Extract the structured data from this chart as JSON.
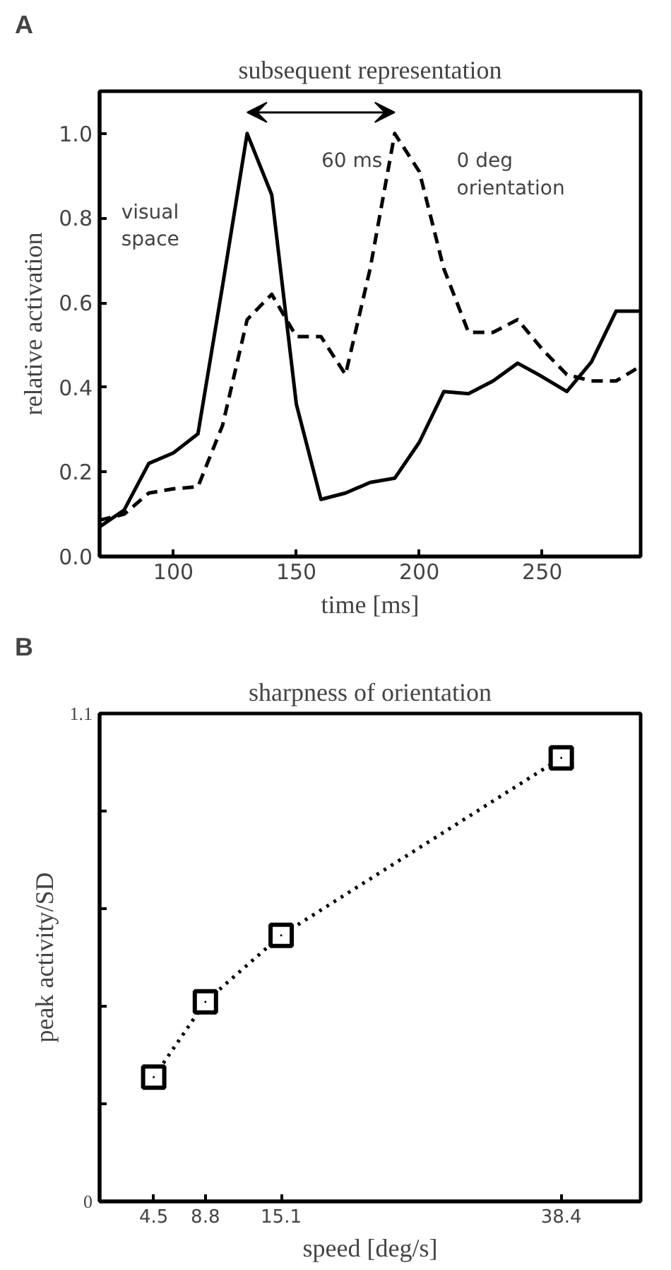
{
  "chart_data": [
    {
      "type": "line",
      "title": "subsequent representation",
      "xlabel": "time [ms]",
      "ylabel": "relative activation",
      "x": [
        70,
        80,
        90,
        100,
        110,
        120,
        130,
        140,
        150,
        160,
        170,
        180,
        190,
        200,
        210,
        220,
        230,
        240,
        250,
        260,
        270,
        280,
        290
      ],
      "series": [
        {
          "color": "#000000",
          "line_style": "solid",
          "values": [
            0.07,
            0.11,
            0.22,
            0.245,
            0.29,
            0.64,
            1.0,
            0.855,
            0.36,
            0.135,
            0.15,
            0.175,
            0.185,
            0.27,
            0.39,
            0.385,
            0.415,
            0.457,
            0.425,
            0.39,
            0.46,
            0.58,
            0.58
          ]
        },
        {
          "color": "#000000",
          "line_style": "dashed",
          "values": [
            0.086,
            0.1,
            0.15,
            0.16,
            0.165,
            0.31,
            0.56,
            0.62,
            0.52,
            0.52,
            0.43,
            0.68,
            1.0,
            0.91,
            0.68,
            0.53,
            0.53,
            0.56,
            0.49,
            0.43,
            0.415,
            0.415,
            0.45
          ]
        }
      ],
      "xlim": [
        70,
        290
      ],
      "ylim": [
        0,
        1.1
      ],
      "xticks": [
        100,
        150,
        200,
        250
      ],
      "yticks": [
        {
          "value": 0,
          "label": "0.0"
        },
        {
          "value": 0.2,
          "label": "0.2"
        },
        {
          "value": 0.4,
          "label": "0.4"
        },
        {
          "value": 0.6,
          "label": "0.6"
        },
        {
          "value": 0.8,
          "label": "0.8"
        },
        {
          "value": 1.0,
          "label": "1.0"
        }
      ],
      "grid": false,
      "marker": "none",
      "annotations": [
        "A",
        "visual\nspace",
        "0 deg\norientation",
        "60 ms"
      ]
    },
    {
      "type": "line",
      "title": "sharpness of orientation",
      "xlabel": "speed [deg/s]",
      "ylabel": "peak activity/SD",
      "x": [
        4.5,
        8.8,
        15.1,
        38.4
      ],
      "series": [
        {
          "color": "#000000",
          "values": [
            0.28,
            0.45,
            0.6,
            1.0
          ]
        }
      ],
      "xlim": [
        0,
        45
      ],
      "ylim": [
        0,
        1.1
      ],
      "xticks": [
        4.5,
        8.8,
        15.1,
        38.4
      ],
      "yticks": [
        0,
        {
          "value": 0.22,
          "label": null
        },
        {
          "value": 0.44,
          "label": null
        },
        {
          "value": 0.66,
          "label": null
        },
        {
          "value": 0.88,
          "label": null
        },
        1.1
      ],
      "grid": false,
      "marker": "square",
      "line_style": "dotted",
      "annotations": [
        "B"
      ]
    }
  ]
}
